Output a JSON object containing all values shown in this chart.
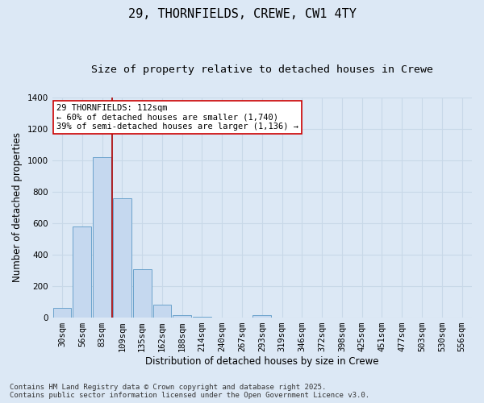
{
  "title": "29, THORNFIELDS, CREWE, CW1 4TY",
  "subtitle": "Size of property relative to detached houses in Crewe",
  "xlabel": "Distribution of detached houses by size in Crewe",
  "ylabel": "Number of detached properties",
  "categories": [
    "30sqm",
    "56sqm",
    "83sqm",
    "109sqm",
    "135sqm",
    "162sqm",
    "188sqm",
    "214sqm",
    "240sqm",
    "267sqm",
    "293sqm",
    "319sqm",
    "346sqm",
    "372sqm",
    "398sqm",
    "425sqm",
    "451sqm",
    "477sqm",
    "503sqm",
    "530sqm",
    "556sqm"
  ],
  "values": [
    60,
    580,
    1020,
    760,
    310,
    80,
    15,
    5,
    0,
    0,
    15,
    0,
    0,
    0,
    0,
    0,
    0,
    0,
    0,
    0,
    0
  ],
  "bar_color": "#c5d8ef",
  "bar_edge_color": "#6ba3cc",
  "background_color": "#dce8f5",
  "grid_color": "#c8d8e8",
  "vline_x": 2.5,
  "vline_color": "#aa0000",
  "annotation_text": "29 THORNFIELDS: 112sqm\n← 60% of detached houses are smaller (1,740)\n39% of semi-detached houses are larger (1,136) →",
  "annotation_box_facecolor": "#ffffff",
  "annotation_box_edge": "#cc0000",
  "ylim": [
    0,
    1400
  ],
  "yticks": [
    0,
    200,
    400,
    600,
    800,
    1000,
    1200,
    1400
  ],
  "footer": "Contains HM Land Registry data © Crown copyright and database right 2025.\nContains public sector information licensed under the Open Government Licence v3.0.",
  "title_fontsize": 11,
  "subtitle_fontsize": 9.5,
  "axis_label_fontsize": 8.5,
  "tick_fontsize": 7.5,
  "annotation_fontsize": 7.5,
  "footer_fontsize": 6.5
}
